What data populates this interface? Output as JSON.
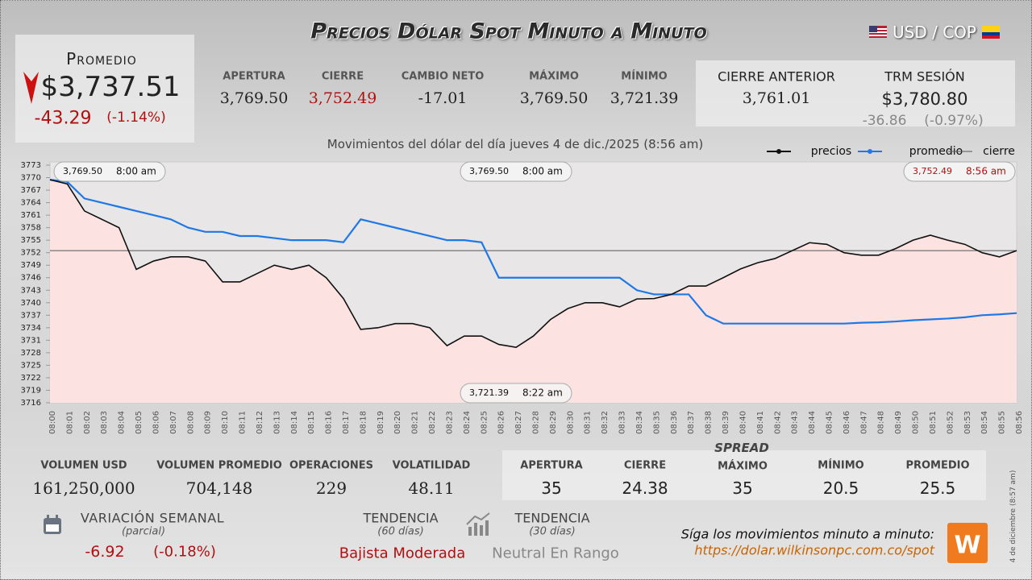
{
  "header": {
    "title": "Precios Dólar Spot Minuto a Minuto",
    "pair": "USD / COP"
  },
  "promedio": {
    "label": "Promedio",
    "value": "$3,737.51",
    "change": "-43.29",
    "change_pct": "(-1.14%)"
  },
  "summary": [
    {
      "label": "APERTURA",
      "value": "3,769.50"
    },
    {
      "label": "CIERRE",
      "value": "3,752.49"
    },
    {
      "label": "CAMBIO NETO",
      "value": "-17.01"
    },
    {
      "label": "MÁXIMO",
      "value": "3,769.50"
    },
    {
      "label": "MÍNIMO",
      "value": "3,721.39"
    }
  ],
  "previous": {
    "cierre_label": "CIERRE ANTERIOR",
    "cierre_value": "3,761.01",
    "trm_label": "TRM SESIÓN",
    "trm_value": "$3,780.80",
    "trm_change": "-36.86",
    "trm_change_pct": "(-0.97%)"
  },
  "chart_data": {
    "type": "line",
    "subtitle": "Movimientos del dólar del día jueves 4 de dic./2025 (8:56 am)",
    "categories": [
      "08:00",
      "08:01",
      "08:02",
      "08:03",
      "08:04",
      "08:05",
      "08:06",
      "08:07",
      "08:08",
      "08:09",
      "08:10",
      "08:11",
      "08:12",
      "08:13",
      "08:14",
      "08:15",
      "08:16",
      "08:17",
      "08:18",
      "08:19",
      "08:20",
      "08:21",
      "08:22",
      "08:23",
      "08:24",
      "08:25",
      "08:26",
      "08:27",
      "08:28",
      "08:29",
      "08:30",
      "08:31",
      "08:32",
      "08:33",
      "08:34",
      "08:35",
      "08:36",
      "08:37",
      "08:38",
      "08:39",
      "08:40",
      "08:41",
      "08:42",
      "08:43",
      "08:44",
      "08:45",
      "08:46",
      "08:47",
      "08:48",
      "08:49",
      "08:50",
      "08:51",
      "08:52",
      "08:53",
      "08:54",
      "08:55",
      "08:56"
    ],
    "series": [
      {
        "name": "precios",
        "color": "#111111",
        "values": [
          3769.5,
          3768.5,
          3762,
          3760,
          3758,
          3748,
          3750,
          3751,
          3751,
          3750,
          3745,
          3745,
          3747,
          3749,
          3748,
          3749,
          3746,
          3741,
          3733.6,
          3734,
          3735,
          3735,
          3734,
          3729.7,
          3732,
          3732,
          3730,
          3729.3,
          3732,
          3736,
          3738.6,
          3740,
          3740,
          3739,
          3740.9,
          3741,
          3742,
          3744,
          3744,
          3746,
          3748.1,
          3749.6,
          3750.6,
          3752.5,
          3754.4,
          3754,
          3752,
          3751.4,
          3751.4,
          3753,
          3755,
          3756.2,
          3755,
          3754,
          3752,
          3751,
          3752.49
        ]
      },
      {
        "name": "promedio",
        "color": "#1e78e6",
        "values": [
          3769.5,
          3769,
          3765,
          3764,
          3763,
          3762,
          3761,
          3760,
          3758,
          3757,
          3757,
          3756,
          3756,
          3755.5,
          3755,
          3755,
          3755,
          3754.5,
          3760,
          3759,
          3758,
          3757,
          3756,
          3755,
          3755,
          3754.5,
          3746,
          3746,
          3746,
          3746,
          3746,
          3746,
          3746,
          3746,
          3743,
          3742,
          3742,
          3742,
          3737,
          3735,
          3735,
          3735,
          3735,
          3735,
          3735,
          3735,
          3735,
          3735.2,
          3735.3,
          3735.5,
          3735.8,
          3736,
          3736.2,
          3736.5,
          3737,
          3737.2,
          3737.51
        ]
      },
      {
        "name": "cierre",
        "color": "#555555",
        "value": 3752.49
      }
    ],
    "ylim": [
      3716,
      3773
    ],
    "yticks": [
      3716,
      3719,
      3722,
      3725,
      3728,
      3731,
      3734,
      3737,
      3740,
      3743,
      3746,
      3749,
      3752,
      3755,
      3758,
      3761,
      3764,
      3767,
      3770,
      3773
    ],
    "grid": false,
    "annotations": [
      {
        "price": "3,769.50",
        "time": "8:00 am"
      },
      {
        "price": "3,769.50",
        "time": "8:00 am"
      },
      {
        "price": "3,752.49",
        "time": "8:56 am"
      },
      {
        "price": "3,721.39",
        "time": "8:22 am"
      }
    ]
  },
  "stats": [
    {
      "label": "VOLUMEN USD",
      "value": "161,250,000"
    },
    {
      "label": "VOLUMEN PROMEDIO",
      "value": "704,148"
    },
    {
      "label": "OPERACIONES",
      "value": "229"
    },
    {
      "label": "VOLATILIDAD",
      "value": "48.11"
    }
  ],
  "spread": {
    "title": "SPREAD",
    "items": [
      {
        "label": "APERTURA",
        "value": "35"
      },
      {
        "label": "CIERRE",
        "value": "24.38"
      },
      {
        "label": "MÁXIMO",
        "value": "35"
      },
      {
        "label": "MÍNIMO",
        "value": "20.5"
      },
      {
        "label": "PROMEDIO",
        "value": "25.5"
      }
    ]
  },
  "weekly": {
    "label": "VARIACIÓN SEMANAL",
    "note": "(parcial)",
    "change": "-6.92",
    "change_pct": "(-0.18%)"
  },
  "trends": [
    {
      "label": "TENDENCIA",
      "note": "(60 días)",
      "value": "Bajista Moderada"
    },
    {
      "label": "TENDENCIA",
      "note": "(30 días)",
      "value": "Neutral En Rango"
    }
  ],
  "footer": {
    "cta": "Síga los movimientos minuto a minuto:",
    "url": "https://dolar.wilkinsonpc.com.co/spot",
    "stamp": "4 de diciembre (8:57 am)"
  }
}
